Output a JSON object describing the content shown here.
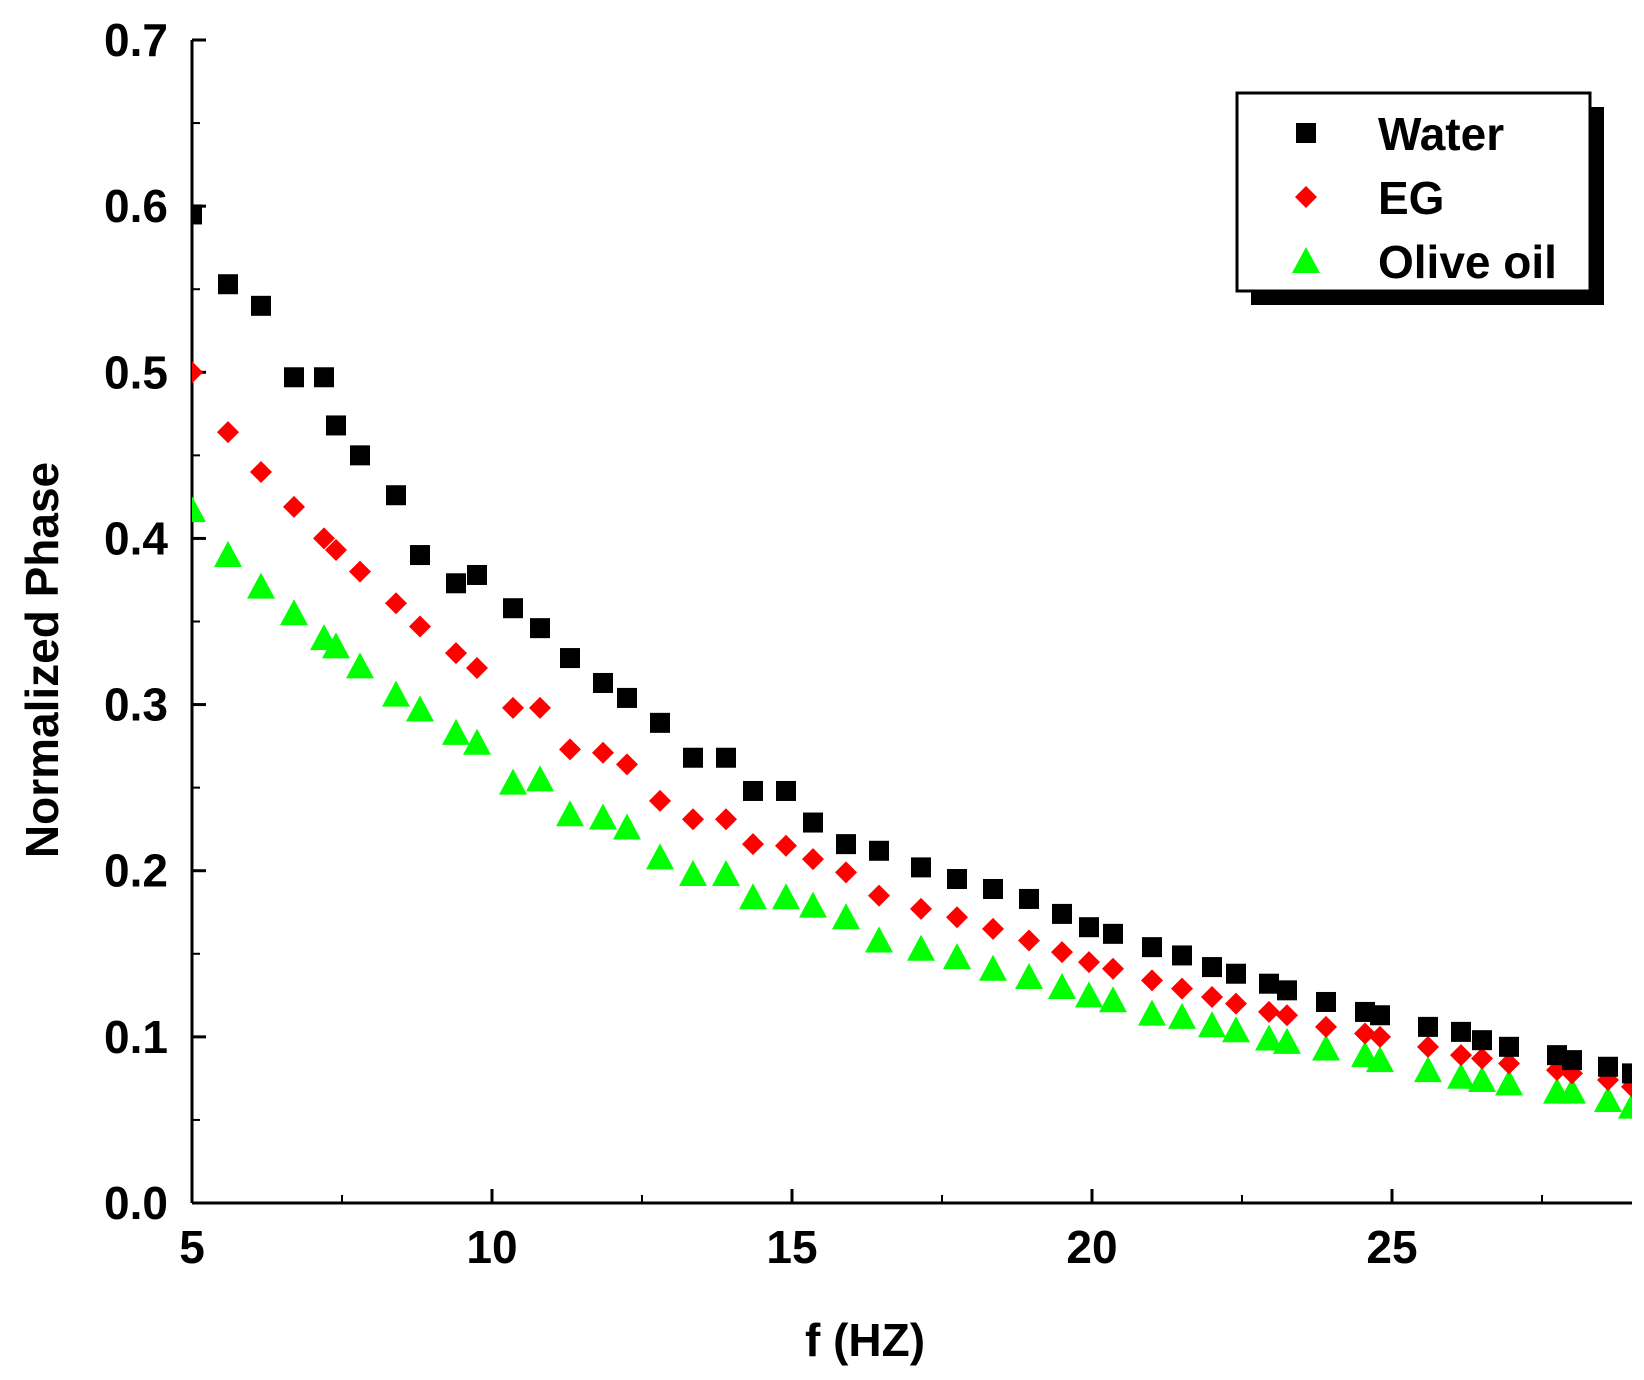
{
  "chart_data": {
    "type": "scatter",
    "title": "",
    "xlabel": "f (HZ)",
    "ylabel": "Normalized Phase",
    "xlim": [
      5,
      29
    ],
    "ylim": [
      0.0,
      0.7
    ],
    "x_ticks": [
      "5",
      "10",
      "15",
      "20",
      "25"
    ],
    "y_ticks": [
      "0.0",
      "0.1",
      "0.2",
      "0.3",
      "0.4",
      "0.5",
      "0.6",
      "0.7"
    ],
    "legend_position": "top-right",
    "series": [
      {
        "name": "Water",
        "marker": "square",
        "color": "#000000",
        "x": [
          5.0,
          5.6,
          6.15,
          6.7,
          7.2,
          7.4,
          7.8,
          8.4,
          8.8,
          9.4,
          9.75,
          10.35,
          10.8,
          11.3,
          11.85,
          12.25,
          12.8,
          13.35,
          13.9,
          14.35,
          14.9,
          15.35,
          15.9,
          16.45,
          17.15,
          17.75,
          18.35,
          18.95,
          19.5,
          19.95,
          20.35,
          21.0,
          21.5,
          22.0,
          22.4,
          22.95,
          23.25,
          23.9,
          24.55,
          24.8,
          25.6,
          26.15,
          26.5,
          26.95,
          27.75,
          28.0,
          28.6,
          29.0
        ],
        "y": [
          0.595,
          0.553,
          0.54,
          0.497,
          0.497,
          0.468,
          0.45,
          0.426,
          0.39,
          0.373,
          0.378,
          0.358,
          0.346,
          0.328,
          0.313,
          0.304,
          0.289,
          0.268,
          0.268,
          0.248,
          0.248,
          0.229,
          0.216,
          0.212,
          0.202,
          0.195,
          0.189,
          0.183,
          0.174,
          0.166,
          0.162,
          0.154,
          0.149,
          0.142,
          0.138,
          0.132,
          0.128,
          0.121,
          0.115,
          0.113,
          0.106,
          0.103,
          0.098,
          0.094,
          0.089,
          0.086,
          0.082,
          0.078
        ]
      },
      {
        "name": "EG",
        "marker": "diamond",
        "color": "#ff0000",
        "x": [
          5.0,
          5.6,
          6.15,
          6.7,
          7.2,
          7.4,
          7.8,
          8.4,
          8.8,
          9.4,
          9.75,
          10.35,
          10.8,
          11.3,
          11.85,
          12.25,
          12.8,
          13.35,
          13.9,
          14.35,
          14.9,
          15.35,
          15.9,
          16.45,
          17.15,
          17.75,
          18.35,
          18.95,
          19.5,
          19.95,
          20.35,
          21.0,
          21.5,
          22.0,
          22.4,
          22.95,
          23.25,
          23.9,
          24.55,
          24.8,
          25.6,
          26.15,
          26.5,
          26.95,
          27.75,
          28.0,
          28.6,
          29.0
        ],
        "y": [
          0.5,
          0.464,
          0.44,
          0.419,
          0.4,
          0.393,
          0.38,
          0.361,
          0.347,
          0.331,
          0.322,
          0.298,
          0.298,
          0.273,
          0.271,
          0.264,
          0.242,
          0.231,
          0.231,
          0.216,
          0.215,
          0.207,
          0.199,
          0.185,
          0.177,
          0.172,
          0.165,
          0.158,
          0.151,
          0.145,
          0.141,
          0.134,
          0.129,
          0.124,
          0.12,
          0.115,
          0.113,
          0.106,
          0.102,
          0.1,
          0.094,
          0.089,
          0.087,
          0.084,
          0.08,
          0.078,
          0.074,
          0.07
        ]
      },
      {
        "name": "Olive oil",
        "marker": "triangle",
        "color": "#00ff00",
        "x": [
          5.0,
          5.6,
          6.15,
          6.7,
          7.2,
          7.4,
          7.8,
          8.4,
          8.8,
          9.4,
          9.75,
          10.35,
          10.8,
          11.3,
          11.85,
          12.25,
          12.8,
          13.35,
          13.9,
          14.35,
          14.9,
          15.35,
          15.9,
          16.45,
          17.15,
          17.75,
          18.35,
          18.95,
          19.5,
          19.95,
          20.35,
          21.0,
          21.5,
          22.0,
          22.4,
          22.95,
          23.25,
          23.9,
          24.55,
          24.8,
          25.6,
          26.15,
          26.5,
          26.95,
          27.75,
          28.0,
          28.6,
          29.0
        ],
        "y": [
          0.417,
          0.39,
          0.371,
          0.355,
          0.34,
          0.335,
          0.323,
          0.306,
          0.297,
          0.283,
          0.277,
          0.253,
          0.255,
          0.234,
          0.232,
          0.226,
          0.208,
          0.198,
          0.198,
          0.184,
          0.184,
          0.179,
          0.172,
          0.158,
          0.153,
          0.148,
          0.141,
          0.136,
          0.13,
          0.125,
          0.122,
          0.114,
          0.112,
          0.107,
          0.104,
          0.099,
          0.097,
          0.093,
          0.089,
          0.086,
          0.08,
          0.076,
          0.074,
          0.072,
          0.067,
          0.067,
          0.062,
          0.058
        ]
      }
    ]
  }
}
